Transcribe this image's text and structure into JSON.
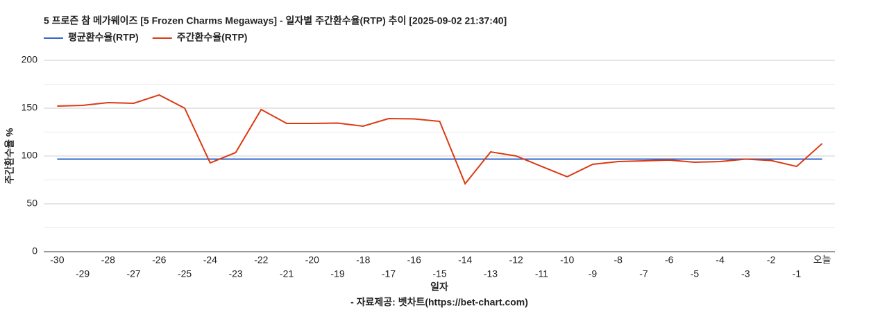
{
  "chart_data": {
    "type": "line",
    "title": "5 프로즌 참 메가웨이즈 [5 Frozen Charms Megaways] - 일자별 주간환수율(RTP) 추이 [2025-09-02 21:37:40]",
    "x_label": "일자",
    "y_label": "주간환수율 %",
    "source": "- 자료제공: 벳차트(https://bet-chart.com)",
    "categories": [
      "-30",
      "-29",
      "-28",
      "-27",
      "-26",
      "-25",
      "-24",
      "-23",
      "-22",
      "-21",
      "-20",
      "-19",
      "-18",
      "-17",
      "-16",
      "-15",
      "-14",
      "-13",
      "-12",
      "-11",
      "-10",
      "-9",
      "-8",
      "-7",
      "-6",
      "-5",
      "-4",
      "-3",
      "-2",
      "-1",
      "오늘"
    ],
    "series": [
      {
        "name": "평균환수율(RTP)",
        "color": "#3366cc",
        "values": [
          96.7,
          96.7,
          96.7,
          96.7,
          96.7,
          96.7,
          96.7,
          96.7,
          96.7,
          96.7,
          96.7,
          96.7,
          96.7,
          96.7,
          96.7,
          96.7,
          96.7,
          96.7,
          96.7,
          96.7,
          96.7,
          96.7,
          96.7,
          96.7,
          96.7,
          96.7,
          96.7,
          96.7,
          96.7,
          96.7,
          96.7
        ]
      },
      {
        "name": "주간환수율(RTP)",
        "color": "#dc3912",
        "values": [
          152.2,
          152.9,
          155.8,
          155.1,
          163.8,
          150,
          92.8,
          103.6,
          148.6,
          134.1,
          134.1,
          134.4,
          131.2,
          139.1,
          138.8,
          136.2,
          71,
          104.3,
          100,
          89.1,
          78.3,
          91.3,
          94.2,
          94.9,
          95.7,
          93.5,
          94.2,
          96.7,
          95.3,
          89.1,
          113
        ]
      }
    ],
    "ylim": [
      0,
      200
    ],
    "yticks": [
      0,
      50,
      100,
      150,
      200
    ],
    "yminor": [
      25,
      75,
      125,
      175
    ],
    "grid": true
  }
}
